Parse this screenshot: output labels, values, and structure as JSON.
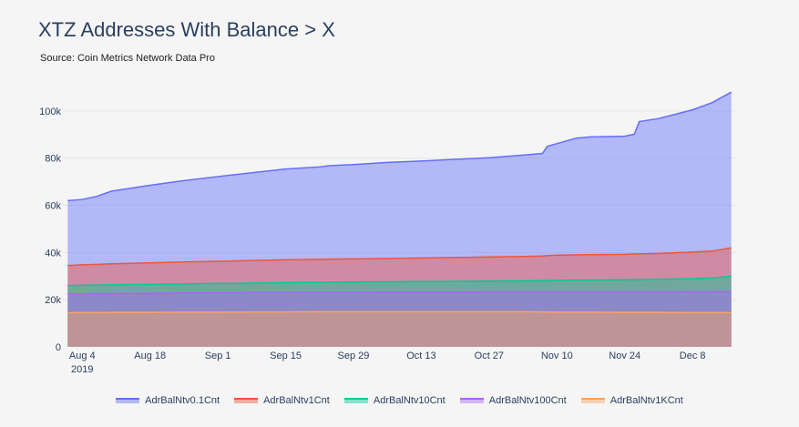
{
  "title": "XTZ Addresses With Balance > X",
  "subtitle": "Source: Coin Metrics Network Data Pro",
  "chart_data": {
    "type": "area",
    "title": "XTZ Addresses With Balance > X",
    "subtitle": "Source: Coin Metrics Network Data Pro",
    "x": [
      "2019-08-01",
      "2019-08-04",
      "2019-08-07",
      "2019-08-10",
      "2019-08-18",
      "2019-08-25",
      "2019-09-01",
      "2019-09-08",
      "2019-09-15",
      "2019-09-22",
      "2019-09-24",
      "2019-09-29",
      "2019-10-06",
      "2019-10-13",
      "2019-10-20",
      "2019-10-27",
      "2019-11-03",
      "2019-11-07",
      "2019-11-08",
      "2019-11-10",
      "2019-11-14",
      "2019-11-17",
      "2019-11-24",
      "2019-11-26",
      "2019-11-27",
      "2019-12-01",
      "2019-12-08",
      "2019-12-12",
      "2019-12-16"
    ],
    "x_tick_labels": [
      "Aug 4",
      "Aug 18",
      "Sep 1",
      "Sep 15",
      "Sep 29",
      "Oct 13",
      "Oct 27",
      "Nov 10",
      "Nov 24",
      "Dec 8"
    ],
    "x_tick_dates": [
      "2019-08-04",
      "2019-08-18",
      "2019-09-01",
      "2019-09-15",
      "2019-09-29",
      "2019-10-13",
      "2019-10-27",
      "2019-11-10",
      "2019-11-24",
      "2019-12-08"
    ],
    "x_tick_sublabel": "2019",
    "x_range": [
      "2019-07-31",
      "2019-12-17"
    ],
    "yticks": [
      0,
      20000,
      40000,
      60000,
      80000,
      100000
    ],
    "ytick_labels": [
      "0",
      "20k",
      "40k",
      "60k",
      "80k",
      "100k"
    ],
    "ylim": [
      0,
      110000
    ],
    "grid": true,
    "legend_position": "bottom",
    "series": [
      {
        "name": "AdrBalNtv0.1Cnt",
        "color": "#636efa",
        "values": [
          62000,
          62500,
          63800,
          66000,
          68500,
          70500,
          72200,
          73800,
          75400,
          76300,
          76800,
          77300,
          78200,
          78800,
          79500,
          80200,
          81300,
          82000,
          85000,
          86200,
          88500,
          89000,
          89300,
          90200,
          95500,
          96800,
          100500,
          103500,
          108000
        ]
      },
      {
        "name": "AdrBalNtv1Cnt",
        "color": "#ef553b",
        "values": [
          34500,
          34800,
          35000,
          35200,
          35600,
          36000,
          36300,
          36600,
          36900,
          37100,
          37200,
          37300,
          37500,
          37700,
          37900,
          38100,
          38300,
          38500,
          38700,
          38900,
          39000,
          39100,
          39200,
          39400,
          39400,
          39600,
          40200,
          40600,
          42000
        ]
      },
      {
        "name": "AdrBalNtv10Cnt",
        "color": "#00cc96",
        "values": [
          26000,
          26100,
          26200,
          26300,
          26500,
          26700,
          26900,
          27000,
          27200,
          27400,
          27400,
          27500,
          27600,
          27700,
          27800,
          27900,
          28000,
          28100,
          28100,
          28200,
          28300,
          28300,
          28400,
          28500,
          28500,
          28600,
          28900,
          29200,
          30000
        ]
      },
      {
        "name": "AdrBalNtv100Cnt",
        "color": "#ab63fa",
        "values": [
          22500,
          22500,
          22600,
          22600,
          22700,
          22800,
          22900,
          23000,
          23000,
          23100,
          23100,
          23100,
          23200,
          23200,
          23200,
          23300,
          23300,
          23300,
          23300,
          23300,
          23300,
          23300,
          23300,
          23300,
          23300,
          23300,
          23400,
          23400,
          23500
        ]
      },
      {
        "name": "AdrBalNtv1KCnt",
        "color": "#ffa15a",
        "values": [
          14500,
          14500,
          14500,
          14600,
          14600,
          14700,
          14700,
          14800,
          14800,
          14900,
          14900,
          14900,
          14900,
          14900,
          14900,
          14900,
          14900,
          14800,
          14800,
          14700,
          14700,
          14700,
          14600,
          14600,
          14600,
          14600,
          14500,
          14500,
          14500
        ]
      }
    ]
  }
}
